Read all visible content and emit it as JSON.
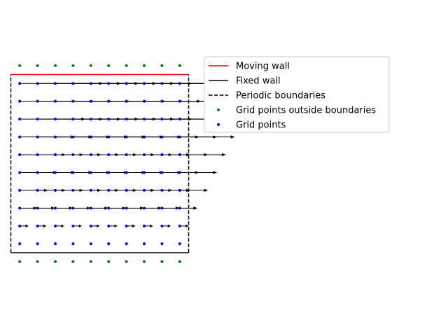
{
  "chart_data": {
    "type": "scatter",
    "title": "",
    "xlabel": "",
    "ylabel": "",
    "axes_visible": false,
    "grid": false,
    "legend_position": "upper-right, outside plot",
    "xlim": [
      0,
      1
    ],
    "ylim": [
      -0.05,
      1.05
    ],
    "grid_points": {
      "x": [
        0.05,
        0.15,
        0.25,
        0.35,
        0.45,
        0.55,
        0.65,
        0.75,
        0.85,
        0.95
      ],
      "y": [
        0.05,
        0.15,
        0.25,
        0.35,
        0.45,
        0.55,
        0.65,
        0.75,
        0.85,
        0.95
      ]
    },
    "outside_points_y": [
      -0.05,
      1.05
    ],
    "boundaries": {
      "moving_wall_y": 1.0,
      "fixed_wall_y": 0.0,
      "periodic_x": [
        0,
        1
      ]
    },
    "velocity_field": {
      "direction": "+x",
      "arrow_length_at_grid_y": [
        0.0,
        0.05,
        0.1,
        0.16,
        0.21,
        0.26,
        0.31,
        0.37,
        0.42,
        0.47
      ]
    },
    "legend": [
      {
        "label": "Moving wall",
        "kind": "line",
        "color": "#ff0000",
        "dash": "solid"
      },
      {
        "label": "Fixed wall",
        "kind": "line",
        "color": "#000000",
        "dash": "solid"
      },
      {
        "label": "Periodic boundaries",
        "kind": "line",
        "color": "#000000",
        "dash": "dashed"
      },
      {
        "label": "Grid points outside boundaries",
        "kind": "marker",
        "color": "#008000"
      },
      {
        "label": "Grid points",
        "kind": "marker",
        "color": "#0000ff"
      }
    ]
  }
}
